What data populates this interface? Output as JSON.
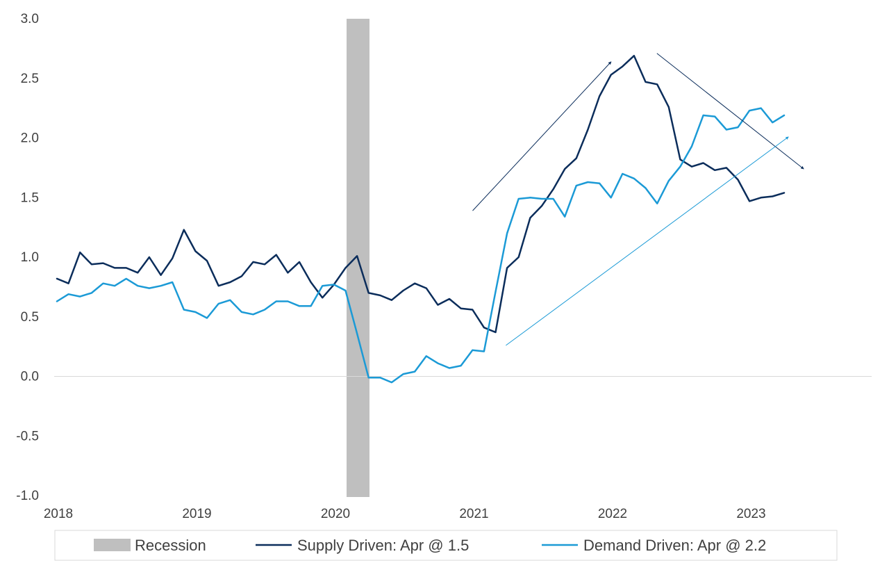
{
  "chart_data": {
    "type": "line",
    "title": "",
    "xlabel": "",
    "ylabel": "",
    "ylim": [
      -1.0,
      3.0
    ],
    "yticks": [
      "3.0",
      "2.5",
      "2.0",
      "1.5",
      "1.0",
      "0.5",
      "0.0",
      "-0.5",
      "-1.0"
    ],
    "ytick_values": [
      3.0,
      2.5,
      2.0,
      1.5,
      1.0,
      0.5,
      0.0,
      -0.5,
      -1.0
    ],
    "xticks": [
      "2018",
      "2019",
      "2020",
      "2021",
      "2022",
      "2023"
    ],
    "xtick_values": [
      2018,
      2019,
      2020,
      2021,
      2022,
      2023
    ],
    "xlim": [
      2018,
      2023.92
    ],
    "grid": false,
    "zero_line": true,
    "legend_position": "bottom",
    "recession": {
      "label": "Recession",
      "start": 2020.08,
      "end": 2020.25,
      "color": "#bfbfbf"
    },
    "series": [
      {
        "name": "Supply Driven: Apr @ 1.5",
        "color": "#0b2d5b",
        "x_start": 2018.0,
        "x_step": 0.0833,
        "values": [
          0.82,
          0.78,
          1.04,
          0.94,
          0.95,
          0.91,
          0.91,
          0.87,
          1.0,
          0.85,
          0.99,
          1.23,
          1.05,
          0.97,
          0.76,
          0.79,
          0.84,
          0.96,
          0.94,
          1.02,
          0.87,
          0.96,
          0.79,
          0.66,
          0.77,
          0.91,
          1.01,
          0.7,
          0.68,
          0.64,
          0.72,
          0.78,
          0.74,
          0.6,
          0.65,
          0.57,
          0.56,
          0.41,
          0.37,
          0.91,
          1.0,
          1.33,
          1.43,
          1.57,
          1.74,
          1.83,
          2.07,
          2.35,
          2.53,
          2.6,
          2.69,
          2.47,
          2.45,
          2.26,
          1.82,
          1.76,
          1.79,
          1.73,
          1.75,
          1.65,
          1.47,
          1.5,
          1.51,
          1.54
        ]
      },
      {
        "name": "Demand Driven: Apr @ 2.2",
        "color": "#1b9ad6",
        "x_start": 2018.0,
        "x_step": 0.0833,
        "values": [
          0.63,
          0.69,
          0.67,
          0.7,
          0.78,
          0.76,
          0.82,
          0.76,
          0.74,
          0.76,
          0.79,
          0.56,
          0.54,
          0.49,
          0.61,
          0.64,
          0.54,
          0.52,
          0.56,
          0.63,
          0.63,
          0.59,
          0.59,
          0.76,
          0.77,
          0.72,
          0.36,
          -0.01,
          -0.01,
          -0.05,
          0.02,
          0.04,
          0.17,
          0.11,
          0.07,
          0.09,
          0.22,
          0.21,
          0.71,
          1.2,
          1.49,
          1.5,
          1.49,
          1.49,
          1.34,
          1.6,
          1.63,
          1.62,
          1.5,
          1.7,
          1.66,
          1.58,
          1.45,
          1.64,
          1.76,
          1.93,
          2.19,
          2.18,
          2.07,
          2.09,
          2.23,
          2.25,
          2.13,
          2.19
        ]
      }
    ],
    "arrows": [
      {
        "name": "supply-rise-arrow",
        "color": "#0b2d5b",
        "from": [
          2021.0,
          1.39
        ],
        "to": [
          2022.0,
          2.64
        ]
      },
      {
        "name": "supply-fall-arrow",
        "color": "#0b2d5b",
        "from": [
          2022.33,
          2.71
        ],
        "to": [
          2023.39,
          1.74
        ]
      },
      {
        "name": "demand-rise-arrow",
        "color": "#1b9ad6",
        "from": [
          2021.24,
          0.26
        ],
        "to": [
          2023.28,
          2.01
        ]
      }
    ]
  }
}
